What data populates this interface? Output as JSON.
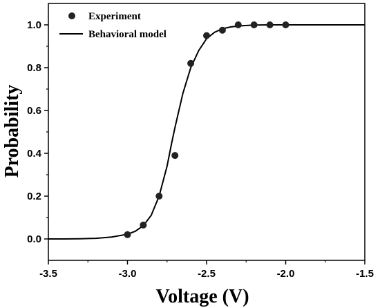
{
  "chart_data": {
    "type": "scatter",
    "xlabel": "Voltage (V)",
    "ylabel": "Probability",
    "xlim": [
      -3.5,
      -1.5
    ],
    "ylim": [
      -0.1,
      1.1
    ],
    "xticks": [
      -3.5,
      -3.0,
      -2.5,
      -2.0,
      -1.5
    ],
    "xtick_labels": [
      "-3.5",
      "-3.0",
      "-2.5",
      "-2.0",
      "-1.5"
    ],
    "yticks": [
      0.0,
      0.2,
      0.4,
      0.6,
      0.8,
      1.0
    ],
    "ytick_labels": [
      "0.0",
      "0.2",
      "0.4",
      "0.6",
      "0.8",
      "1.0"
    ],
    "grid": false,
    "legend_position": "top-left",
    "series": [
      {
        "name": "Experiment",
        "kind": "scatter",
        "x": [
          -3.0,
          -2.9,
          -2.8,
          -2.7,
          -2.6,
          -2.5,
          -2.4,
          -2.3,
          -2.2,
          -2.1,
          -2.0
        ],
        "y": [
          0.02,
          0.065,
          0.2,
          0.39,
          0.82,
          0.95,
          0.975,
          1.0,
          1.0,
          1.0,
          1.0
        ],
        "color": "#222222"
      },
      {
        "name": "Behavioral model",
        "kind": "line",
        "x": [
          -3.5,
          -3.4,
          -3.3,
          -3.2,
          -3.1,
          -3.0,
          -2.95,
          -2.9,
          -2.85,
          -2.8,
          -2.75,
          -2.72,
          -2.7,
          -2.65,
          -2.6,
          -2.55,
          -2.5,
          -2.45,
          -2.4,
          -2.35,
          -2.3,
          -2.2,
          -2.1,
          -2.0,
          -1.9,
          -1.8,
          -1.7,
          -1.6,
          -1.5
        ],
        "y": [
          0.0,
          0.0,
          0.001,
          0.003,
          0.009,
          0.022,
          0.036,
          0.062,
          0.11,
          0.2,
          0.34,
          0.45,
          0.52,
          0.68,
          0.8,
          0.88,
          0.935,
          0.965,
          0.982,
          0.99,
          0.995,
          0.999,
          1.0,
          1.0,
          1.0,
          1.0,
          1.0,
          1.0,
          1.0
        ],
        "color": "#000000"
      }
    ]
  }
}
